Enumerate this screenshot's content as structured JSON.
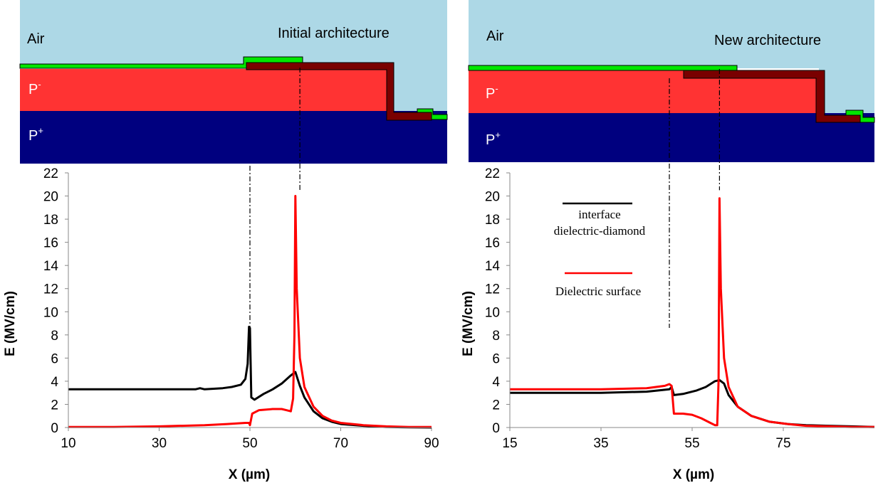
{
  "colors": {
    "air": "#add8e6",
    "p_minus": "#ff3333",
    "p_plus": "#00007f",
    "electrode": "#00e600",
    "dielectric": "#7a0000",
    "series_interface": "#000000",
    "series_surface": "#ff0000"
  },
  "left_panel": {
    "schematic": {
      "title": "Initial architecture",
      "air_label": "Air",
      "p_minus_label": "P",
      "p_minus_sup": "-",
      "p_plus_label": "P",
      "p_plus_sup": "+"
    }
  },
  "right_panel": {
    "schematic": {
      "title": "New architecture",
      "air_label": "Air",
      "p_minus_label": "P",
      "p_minus_sup": "-",
      "p_plus_label": "P",
      "p_plus_sup": "+"
    },
    "legend": [
      {
        "line1": "interface",
        "line2": "dielectric-diamond",
        "color": "#000000"
      },
      {
        "line1": "Dielectric  surface",
        "line2": "",
        "color": "#ff0000"
      }
    ]
  },
  "chart_data": [
    {
      "type": "line",
      "xlabel": "X (µm)",
      "ylabel": "E (MV/cm)",
      "xlim": [
        10,
        90
      ],
      "ylim": [
        0,
        22
      ],
      "xticks": [
        10,
        30,
        50,
        70,
        90
      ],
      "yticks": [
        0,
        2,
        4,
        6,
        8,
        10,
        12,
        14,
        16,
        18,
        20,
        22
      ],
      "guide_lines_x": [
        50,
        61
      ],
      "series": [
        {
          "name": "interface dielectric-diamond",
          "color": "#000000",
          "x": [
            10,
            20,
            30,
            38,
            39,
            40,
            44,
            46,
            48,
            49,
            49.5,
            49.8,
            50,
            50.3,
            51,
            53,
            55,
            57,
            59,
            60,
            61,
            62,
            64,
            66,
            68,
            70,
            75,
            80,
            85,
            90
          ],
          "y": [
            3.3,
            3.3,
            3.3,
            3.3,
            3.4,
            3.3,
            3.4,
            3.5,
            3.7,
            4.2,
            5.5,
            8.7,
            8.6,
            2.6,
            2.4,
            2.9,
            3.3,
            3.8,
            4.5,
            4.8,
            3.6,
            2.6,
            1.4,
            0.8,
            0.5,
            0.3,
            0.15,
            0.05,
            0.02,
            0.0
          ]
        },
        {
          "name": "Dielectric surface",
          "color": "#ff0000",
          "x": [
            10,
            20,
            30,
            40,
            45,
            49,
            49.8,
            50,
            50.5,
            52,
            55,
            57,
            58,
            59,
            59.5,
            59.8,
            60,
            60.3,
            61,
            62,
            64,
            66,
            68,
            70,
            75,
            80,
            85,
            90
          ],
          "y": [
            0.05,
            0.05,
            0.1,
            0.2,
            0.3,
            0.4,
            0.4,
            0.2,
            1.2,
            1.5,
            1.6,
            1.6,
            1.5,
            1.4,
            2.5,
            8.0,
            20.0,
            12.0,
            6.0,
            3.5,
            1.8,
            1.0,
            0.6,
            0.4,
            0.2,
            0.1,
            0.05,
            0.05
          ]
        }
      ]
    },
    {
      "type": "line",
      "xlabel": "X (µm)",
      "ylabel": "E (MV/cm)",
      "xlim": [
        15,
        95
      ],
      "ylim": [
        0,
        22
      ],
      "xticks": [
        15,
        35,
        55,
        75
      ],
      "yticks": [
        0,
        2,
        4,
        6,
        8,
        10,
        12,
        14,
        16,
        18,
        20,
        22
      ],
      "guide_lines_x": [
        50,
        61
      ],
      "series": [
        {
          "name": "interface dielectric-diamond",
          "color": "#000000",
          "x": [
            15,
            25,
            35,
            45,
            50,
            50.5,
            51,
            53,
            56,
            58,
            60,
            61,
            62,
            63,
            65,
            68,
            72,
            76,
            80,
            85,
            90,
            95
          ],
          "y": [
            3.0,
            3.0,
            3.0,
            3.1,
            3.3,
            3.5,
            2.8,
            2.9,
            3.2,
            3.5,
            4.0,
            4.1,
            3.8,
            2.8,
            1.8,
            1.0,
            0.5,
            0.3,
            0.2,
            0.15,
            0.1,
            0.05
          ]
        },
        {
          "name": "Dielectric surface",
          "color": "#ff0000",
          "x": [
            15,
            25,
            35,
            45,
            49,
            50,
            50.5,
            51,
            53,
            55,
            57,
            59,
            60,
            60.5,
            60.8,
            61,
            61.3,
            62,
            63,
            65,
            68,
            72,
            76,
            80,
            85,
            90,
            95
          ],
          "y": [
            3.3,
            3.3,
            3.3,
            3.4,
            3.6,
            3.75,
            3.6,
            1.2,
            1.2,
            1.1,
            0.8,
            0.4,
            0.2,
            0.2,
            4.0,
            19.8,
            12.0,
            6.0,
            3.5,
            1.8,
            1.0,
            0.5,
            0.3,
            0.15,
            0.1,
            0.05,
            0.05
          ]
        }
      ]
    }
  ]
}
